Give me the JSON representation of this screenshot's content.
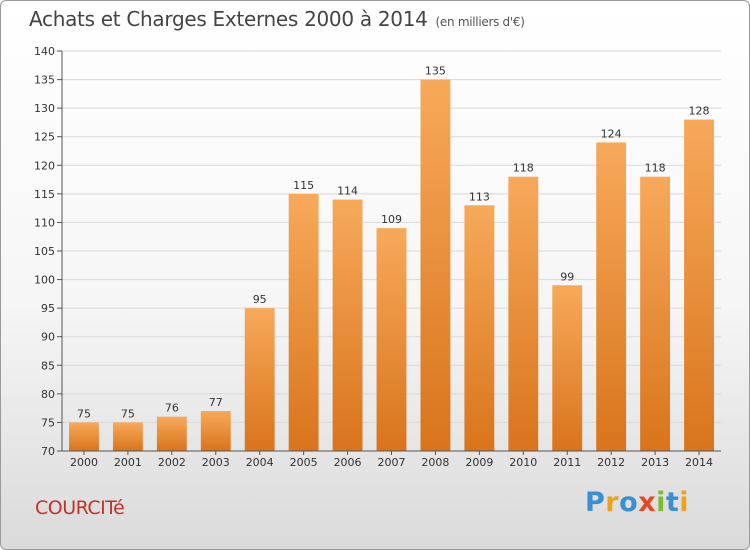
{
  "title": "Achats et Charges Externes 2000 à 2014",
  "subtitle": "(en milliers d'€)",
  "commune": "COURCITé",
  "logo": {
    "letters": [
      "P",
      "r",
      "o",
      "x",
      "i",
      "t",
      "i"
    ],
    "colors": [
      "#3a8fd1",
      "#f0a01a",
      "#3a8fd1",
      "#e2492b",
      "#7dbb2f",
      "#3a8fd1",
      "#f0a01a"
    ]
  },
  "colors": {
    "bar_top": "#f7a95a",
    "bar_bottom": "#d9741c",
    "grid": "#d9d9d9"
  },
  "chart_data": {
    "type": "bar",
    "categories": [
      "2000",
      "2001",
      "2002",
      "2003",
      "2004",
      "2005",
      "2006",
      "2007",
      "2008",
      "2009",
      "2010",
      "2011",
      "2012",
      "2013",
      "2014"
    ],
    "values": [
      75,
      75,
      76,
      77,
      95,
      115,
      114,
      109,
      135,
      113,
      118,
      99,
      124,
      118,
      128
    ],
    "ylim": [
      70,
      140
    ],
    "yticks": [
      70,
      75,
      80,
      85,
      90,
      95,
      100,
      105,
      110,
      115,
      120,
      125,
      130,
      135,
      140
    ],
    "grid": true
  }
}
